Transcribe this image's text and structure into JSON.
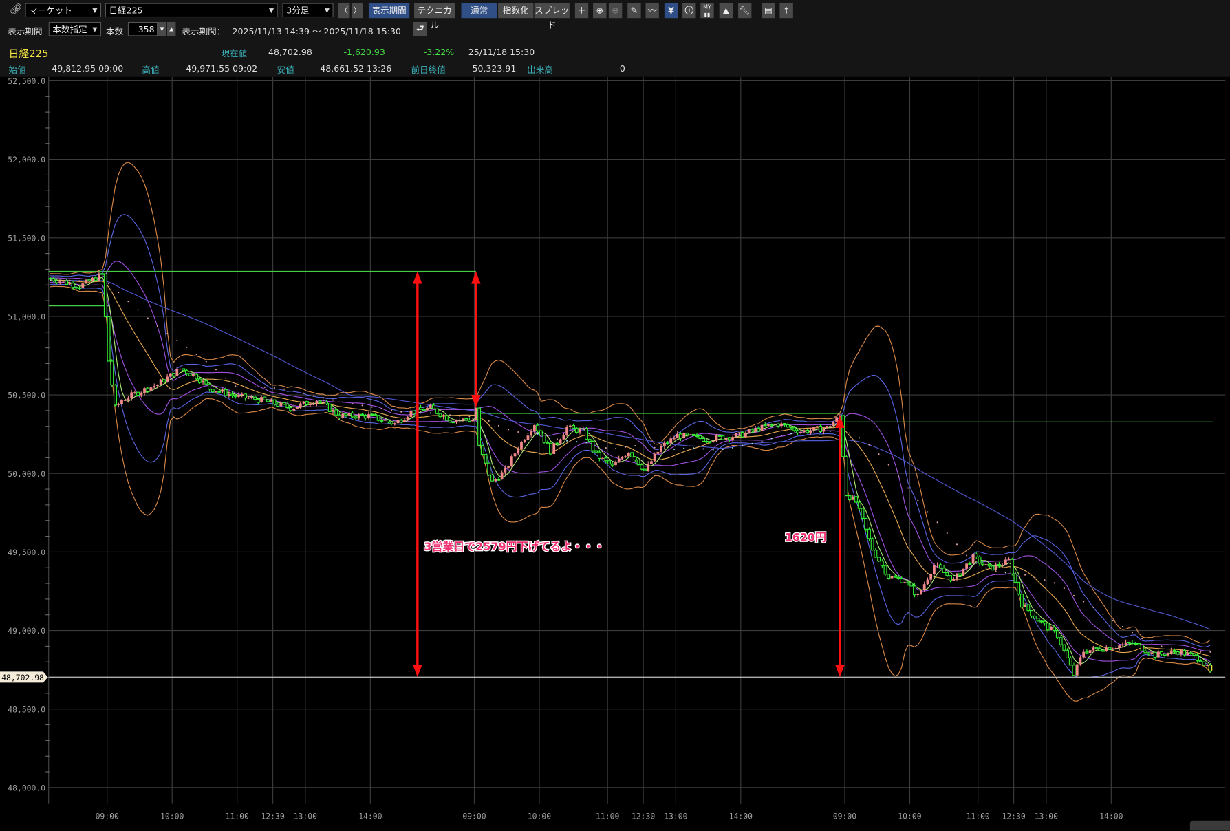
{
  "toolbar": {
    "market_select": "マーケット",
    "symbol_select": "日経225",
    "interval_select": "3分足",
    "prev_label": "〈",
    "next_label": "〉",
    "period_button": "表示期間",
    "technical_button": "テクニカル",
    "normal_button": "通常",
    "index_button": "指数化",
    "spread_button": "スプレッド",
    "icons": [
      "crosshair-icon",
      "zoom-in-icon",
      "zoom-out-icon",
      "pencil-icon",
      "wave-cursor-icon",
      "yen-icon",
      "info-icon",
      "my-chart-icon",
      "area-chart-icon",
      "wrench-icon",
      "print-icon",
      "export-icon"
    ],
    "active_icon": "yen-icon"
  },
  "period_bar": {
    "period_label": "表示期間",
    "mode_select": "本数指定",
    "count_label": "本数",
    "count_value": "358",
    "range_label": "表示期間：",
    "range_value": "2025/11/13 14:39 ～ 2025/11/18 15:30"
  },
  "quote": {
    "name": "日経225",
    "current_label": "現在値",
    "current_value": "48,702.98",
    "change": "-1,620.93",
    "change_pct": "-3.22%",
    "datetime": "25/11/18  15:30",
    "open_label": "始値",
    "open_value": "49,812.95 09:00",
    "high_label": "高値",
    "high_value": "49,971.55 09:02",
    "low_label": "安値",
    "low_value": "48,661.52 13:26",
    "prev_close_label": "前日終値",
    "prev_close_value": "50,323.91",
    "volume_label": "出来高",
    "volume_value": "0"
  },
  "colors": {
    "up_candle": "#f08a8a",
    "down_candle": "#33ee33",
    "ma_mid": "#e8a850",
    "band1": "#a050e0",
    "band2": "#5a64e0",
    "band3": "#d88848",
    "ma_short": "#a8e878",
    "ma_long": "#5058d0",
    "ref_line": "#44cc44",
    "arrow": "#ff1010",
    "annotation": "#f03070"
  },
  "chart_data": {
    "type": "candlestick",
    "bar_count": 358,
    "ylim": [
      48000,
      52500
    ],
    "y_ticks": [
      "52,500.0",
      "52,000.0",
      "51,500.0",
      "51,000.0",
      "50,500.0",
      "50,000.0",
      "49,500.0",
      "49,000.0",
      "48,500.0",
      "48,000.0"
    ],
    "y_tick_values": [
      52500,
      52000,
      51500,
      51000,
      50500,
      50000,
      49500,
      49000,
      48500,
      48000
    ],
    "x_ticks": [
      {
        "bar": 18,
        "label": "09:00"
      },
      {
        "bar": 38,
        "label": "10:00"
      },
      {
        "bar": 58,
        "label": "11:00"
      },
      {
        "bar": 69,
        "label": "12:30"
      },
      {
        "bar": 79,
        "label": "13:00"
      },
      {
        "bar": 99,
        "label": "14:00"
      },
      {
        "bar": 131,
        "label": "09:00"
      },
      {
        "bar": 151,
        "label": "10:00"
      },
      {
        "bar": 172,
        "label": "11:00"
      },
      {
        "bar": 183,
        "label": "12:30"
      },
      {
        "bar": 193,
        "label": "13:00"
      },
      {
        "bar": 213,
        "label": "14:00"
      },
      {
        "bar": 245,
        "label": "09:00"
      },
      {
        "bar": 265,
        "label": "10:00"
      },
      {
        "bar": 286,
        "label": "11:00"
      },
      {
        "bar": 297,
        "label": "12:30"
      },
      {
        "bar": 307,
        "label": "13:00"
      },
      {
        "bar": 327,
        "label": "14:00"
      }
    ],
    "close_path": [
      [
        0,
        51242
      ],
      [
        9,
        51192
      ],
      [
        16,
        51267
      ],
      [
        18,
        50717
      ],
      [
        20,
        50417
      ],
      [
        22,
        50467
      ],
      [
        27,
        50517
      ],
      [
        33,
        50567
      ],
      [
        40,
        50667
      ],
      [
        45,
        50617
      ],
      [
        49,
        50542
      ],
      [
        57,
        50492
      ],
      [
        65,
        50467
      ],
      [
        74,
        50417
      ],
      [
        82,
        50467
      ],
      [
        89,
        50367
      ],
      [
        98,
        50367
      ],
      [
        106,
        50317
      ],
      [
        111,
        50392
      ],
      [
        117,
        50417
      ],
      [
        123,
        50342
      ],
      [
        130,
        50342
      ],
      [
        131,
        50417
      ],
      [
        132,
        50168
      ],
      [
        136,
        49943
      ],
      [
        140,
        50018
      ],
      [
        144,
        50168
      ],
      [
        149,
        50317
      ],
      [
        154,
        50143
      ],
      [
        159,
        50292
      ],
      [
        164,
        50267
      ],
      [
        168,
        50118
      ],
      [
        173,
        50043
      ],
      [
        178,
        50143
      ],
      [
        183,
        50018
      ],
      [
        188,
        50168
      ],
      [
        193,
        50243
      ],
      [
        202,
        50218
      ],
      [
        212,
        50243
      ],
      [
        219,
        50292
      ],
      [
        224,
        50317
      ],
      [
        231,
        50267
      ],
      [
        239,
        50292
      ],
      [
        243,
        50367
      ],
      [
        245,
        49868
      ],
      [
        248,
        49818
      ],
      [
        253,
        49518
      ],
      [
        258,
        49343
      ],
      [
        263,
        49318
      ],
      [
        267,
        49218
      ],
      [
        272,
        49418
      ],
      [
        278,
        49318
      ],
      [
        284,
        49468
      ],
      [
        289,
        49393
      ],
      [
        295,
        49443
      ],
      [
        299,
        49168
      ],
      [
        304,
        49068
      ],
      [
        310,
        48969
      ],
      [
        315,
        48719
      ],
      [
        318,
        48869
      ],
      [
        326,
        48894
      ],
      [
        333,
        48919
      ],
      [
        340,
        48844
      ],
      [
        347,
        48869
      ],
      [
        354,
        48819
      ],
      [
        358,
        48703
      ]
    ],
    "current_price": 48702.98,
    "current_price_label": "48,702.98",
    "reference_lines": [
      {
        "price": 51287,
        "from_bar": 0,
        "to_bar": 131
      },
      {
        "price": 51067,
        "from_bar": 0,
        "to_bar": 18
      },
      {
        "price": 50382,
        "from_bar": 131,
        "to_bar": 243
      },
      {
        "price": 50328,
        "from_bar": 243,
        "to_bar": 358
      }
    ],
    "arrows": [
      {
        "bar": 113,
        "from": 51287,
        "to": 48703
      },
      {
        "bar": 131,
        "from": 51287,
        "to": 50420
      },
      {
        "bar": 243,
        "from": 50370,
        "to": 48703
      }
    ],
    "annotations": [
      {
        "text": "3営業日で2579円下げてるよ・・・",
        "bar": 115,
        "price": 49510
      },
      {
        "text": "1620円",
        "bar": 226,
        "price": 49570
      }
    ]
  }
}
